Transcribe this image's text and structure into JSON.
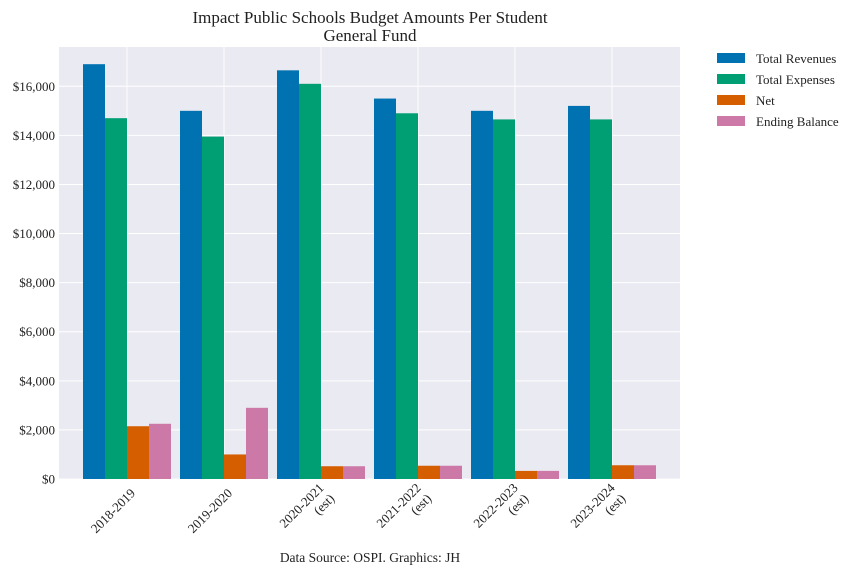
{
  "chart_data": {
    "type": "bar",
    "title": "Impact Public Schools Budget Amounts Per Student",
    "subtitle": "General Fund",
    "xlabel": "",
    "ylabel": "",
    "footer": "Data Source: OSPI. Graphics: JH",
    "categories": [
      "2018-2019",
      "2019-2020",
      "2020-2021\n(est)",
      "2021-2022\n(est)",
      "2022-2023\n(est)",
      "2023-2024\n(est)"
    ],
    "series": [
      {
        "name": "Total Revenues",
        "color": "#0072b2",
        "values": [
          16900,
          15000,
          16650,
          15500,
          15000,
          15200
        ]
      },
      {
        "name": "Total Expenses",
        "color": "#009e73",
        "values": [
          14700,
          13950,
          16100,
          14900,
          14650,
          14650
        ]
      },
      {
        "name": "Net",
        "color": "#d55e00",
        "values": [
          2150,
          1000,
          520,
          540,
          330,
          560
        ]
      },
      {
        "name": "Ending Balance",
        "color": "#cc79a7",
        "values": [
          2250,
          2900,
          520,
          540,
          330,
          560
        ]
      }
    ],
    "ylim": [
      0,
      17600
    ],
    "yticks": [
      0,
      2000,
      4000,
      6000,
      8000,
      10000,
      12000,
      14000,
      16000
    ],
    "ytick_labels": [
      "$0",
      "$2,000",
      "$4,000",
      "$6,000",
      "$8,000",
      "$10,000",
      "$12,000",
      "$14,000",
      "$16,000"
    ],
    "grid": true,
    "legend_position": "outside-top-right",
    "colors": {
      "plot_background": "#eaeaf2",
      "grid": "#ffffff"
    }
  }
}
